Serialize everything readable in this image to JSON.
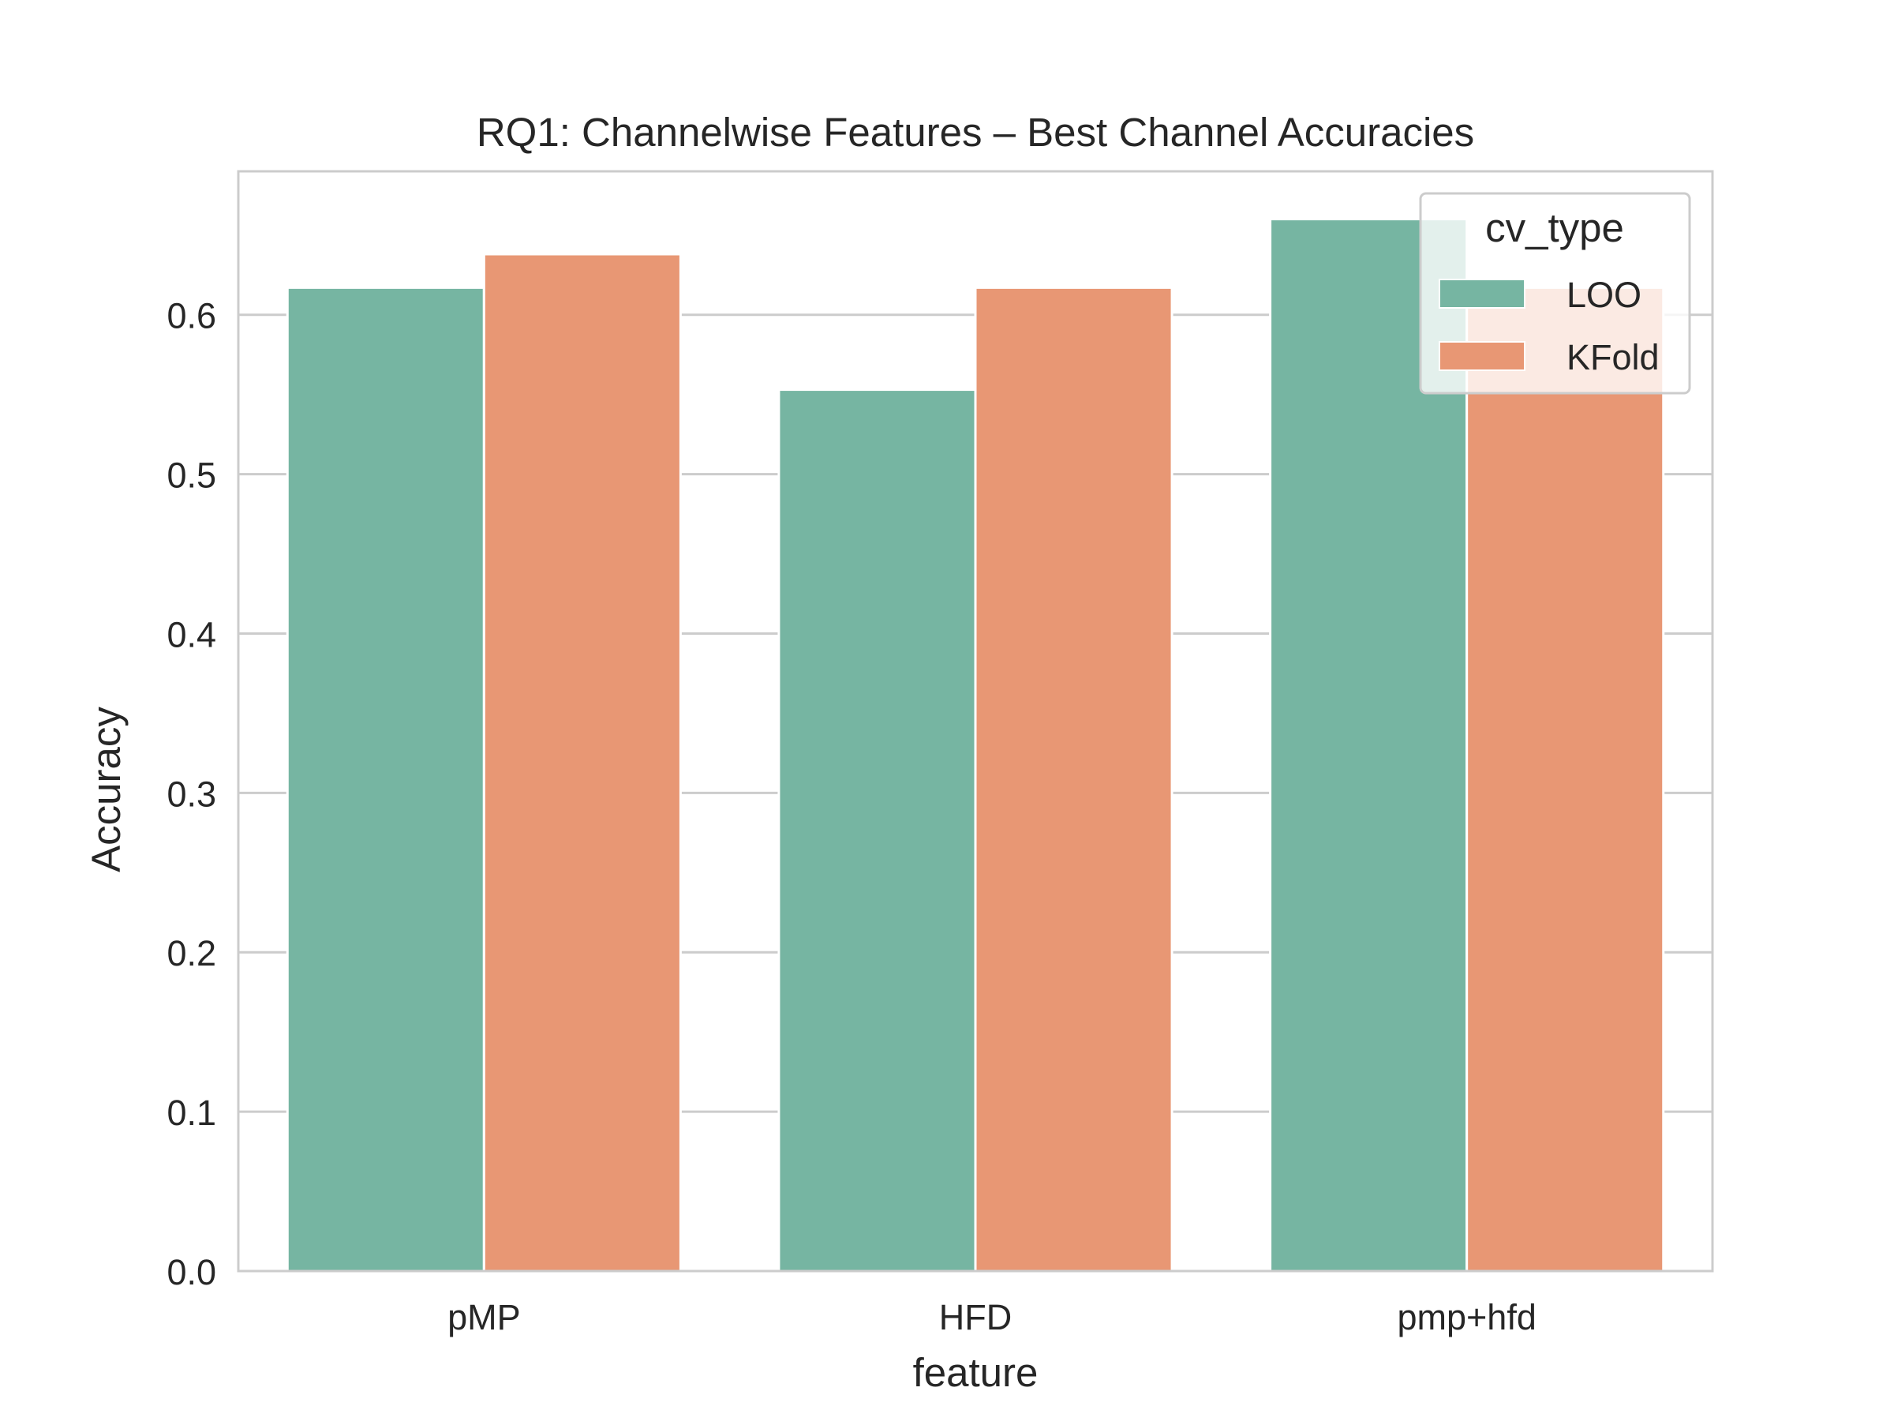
{
  "chart_data": {
    "type": "bar",
    "title": "RQ1: Channelwise Features – Best Channel Accuracies",
    "xlabel": "feature",
    "ylabel": "Accuracy",
    "categories": [
      "pMP",
      "HFD",
      "pmp+hfd"
    ],
    "series": [
      {
        "name": "LOO",
        "values": [
          0.617,
          0.553,
          0.66
        ],
        "color": "#76b5a2"
      },
      {
        "name": "KFold",
        "values": [
          0.638,
          0.617,
          0.617
        ],
        "color": "#e89774"
      }
    ],
    "ylim": [
      0,
      0.69
    ],
    "yticks": [
      "0.0",
      "0.1",
      "0.2",
      "0.3",
      "0.4",
      "0.5",
      "0.6"
    ],
    "grid": true,
    "legend": {
      "title": "cv_type",
      "placement": "top-right"
    }
  }
}
